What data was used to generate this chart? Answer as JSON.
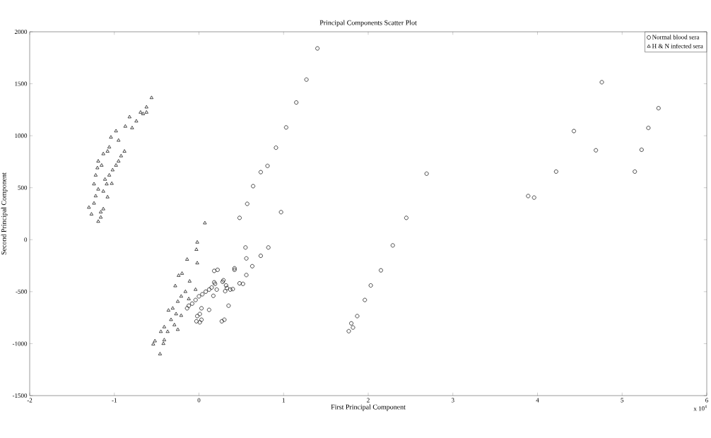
{
  "chart_data": {
    "type": "scatter",
    "title": "Principal Components Scatter Plot",
    "xlabel": "First Principal Component",
    "ylabel": "Second Principal Component",
    "annotations": [
      "x 10$^{4}$"
    ],
    "xlim": [
      -2,
      6
    ],
    "ylim": [
      -1500,
      2000
    ],
    "xticks": [
      -2,
      -1,
      0,
      1,
      2,
      3,
      4,
      5,
      6
    ],
    "yticks": [
      -1500,
      -1000,
      -500,
      0,
      500,
      1000,
      1500,
      2000
    ],
    "grid": false,
    "legend": "top right",
    "series": [
      {
        "name": "Normal blood sera",
        "color": "#000000",
        "marker": "circle",
        "x": [
          1.4,
          1.27,
          1.15,
          1.03,
          0.91,
          0.81,
          0.73,
          0.64,
          0.57,
          0.48,
          0.97,
          0.55,
          0.82,
          0.56,
          0.73,
          0.63,
          0.56,
          0.48,
          0.52,
          0.42,
          0.42,
          0.22,
          0.18,
          0.28,
          0.32,
          0.4,
          0.37,
          0.31,
          0.18,
          0.19,
          0.21,
          0.17,
          0.35,
          0.12,
          0.03,
          0.01,
          -0.02,
          0.03,
          0.01,
          -0.03,
          0.27,
          0.3,
          0.15,
          0.12,
          0.08,
          0.04,
          0.0,
          -0.04,
          -0.08,
          -0.12,
          -0.14,
          0.29,
          0.33,
          2.29,
          2.15,
          2.03,
          1.96,
          1.87,
          1.8,
          1.82,
          1.77,
          2.45,
          2.69,
          4.76,
          5.43,
          4.43,
          5.31,
          4.69,
          5.23,
          4.22,
          5.15,
          3.89,
          3.96
        ],
        "values": [
          1840,
          1540,
          1320,
          1080,
          885,
          710,
          650,
          515,
          345,
          210,
          265,
          -75,
          -75,
          -180,
          -155,
          -255,
          -340,
          -420,
          -425,
          -275,
          -290,
          -290,
          -300,
          -405,
          -440,
          -475,
          -480,
          -495,
          -410,
          -425,
          -480,
          -540,
          -635,
          -675,
          -660,
          -715,
          -735,
          -770,
          -795,
          -785,
          -785,
          -770,
          -460,
          -480,
          -500,
          -525,
          -545,
          -580,
          -615,
          -635,
          -660,
          -390,
          -465,
          -55,
          -295,
          -440,
          -580,
          -735,
          -805,
          -845,
          -880,
          210,
          635,
          1515,
          1265,
          1045,
          1075,
          860,
          865,
          655,
          655,
          420,
          405
        ]
      },
      {
        "name": "H & N infected sera",
        "color": "#000000",
        "marker": "triangle",
        "x": [
          -0.56,
          -0.62,
          -0.62,
          -0.69,
          -0.66,
          -0.82,
          -0.74,
          -0.87,
          -0.79,
          -0.98,
          -1.04,
          -0.95,
          -0.88,
          -1.06,
          -0.92,
          -1.13,
          -1.08,
          -0.95,
          -1.19,
          -0.98,
          -1.2,
          -1.15,
          -1.02,
          -1.22,
          -1.06,
          -1.24,
          -1.11,
          -1.09,
          -1.19,
          -1.03,
          -1.13,
          -1.08,
          -1.22,
          -1.24,
          -1.13,
          -1.27,
          -1.16,
          -1.19,
          -1.16,
          -1.3,
          -0.02,
          -0.03,
          -0.14,
          -0.02,
          -0.24,
          -0.2,
          -0.28,
          -0.11,
          -0.16,
          -0.04,
          -0.25,
          -0.21,
          -0.12,
          -0.36,
          -0.31,
          -0.27,
          -0.21,
          -0.33,
          -0.29,
          -0.41,
          -0.37,
          -0.45,
          -0.25,
          -0.52,
          -0.41,
          -0.54,
          -0.42,
          -0.46,
          0.07
        ],
        "values": [
          1365,
          1275,
          1225,
          1225,
          1210,
          1180,
          1140,
          1090,
          1075,
          1045,
          985,
          955,
          850,
          890,
          805,
          825,
          850,
          755,
          755,
          715,
          690,
          715,
          670,
          620,
          620,
          535,
          580,
          535,
          485,
          540,
          465,
          410,
          420,
          350,
          295,
          245,
          265,
          175,
          215,
          310,
          -25,
          -95,
          -190,
          -225,
          -345,
          -325,
          -445,
          -400,
          -500,
          -480,
          -595,
          -545,
          -570,
          -680,
          -660,
          -715,
          -730,
          -770,
          -820,
          -840,
          -885,
          -885,
          -865,
          -975,
          -965,
          -1005,
          -1000,
          -1100,
          160
        ]
      }
    ]
  }
}
